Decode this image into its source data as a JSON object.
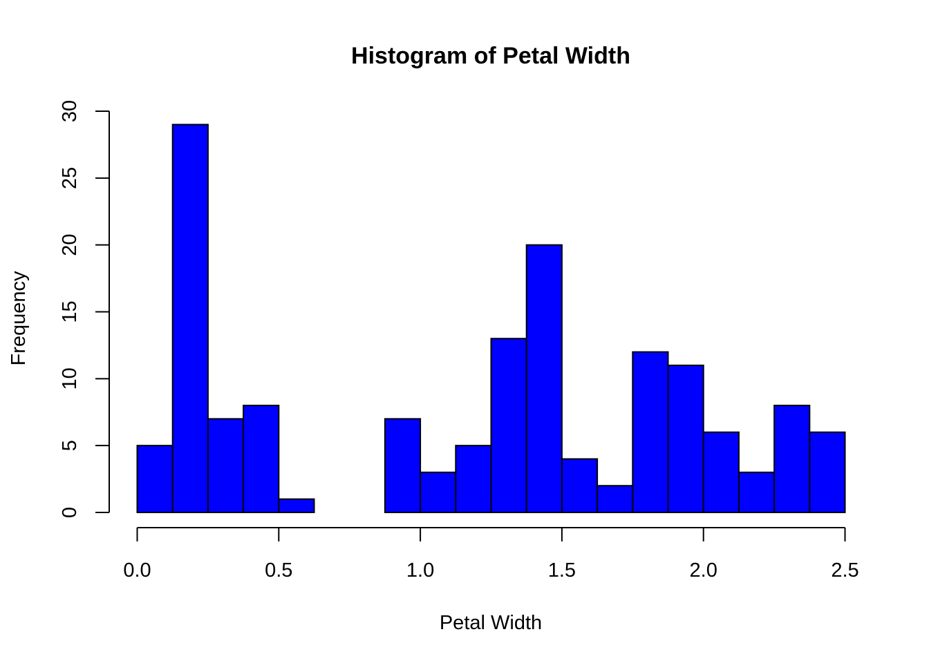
{
  "chart_data": {
    "type": "bar",
    "title": "Histogram of Petal Width",
    "xlabel": "Petal Width",
    "ylabel": "Frequency",
    "bins": [
      [
        0.0,
        0.125
      ],
      [
        0.125,
        0.25
      ],
      [
        0.25,
        0.375
      ],
      [
        0.375,
        0.5
      ],
      [
        0.5,
        0.625
      ],
      [
        0.625,
        0.75
      ],
      [
        0.75,
        0.875
      ],
      [
        0.875,
        1.0
      ],
      [
        1.0,
        1.125
      ],
      [
        1.125,
        1.25
      ],
      [
        1.25,
        1.375
      ],
      [
        1.375,
        1.5
      ],
      [
        1.5,
        1.625
      ],
      [
        1.625,
        1.75
      ],
      [
        1.75,
        1.875
      ],
      [
        1.875,
        2.0
      ],
      [
        2.0,
        2.125
      ],
      [
        2.125,
        2.25
      ],
      [
        2.25,
        2.375
      ],
      [
        2.375,
        2.5
      ]
    ],
    "values": [
      5,
      29,
      7,
      8,
      1,
      0,
      0,
      7,
      3,
      5,
      13,
      20,
      4,
      2,
      12,
      11,
      6,
      3,
      8,
      6
    ],
    "xlim": [
      0,
      2.5
    ],
    "ylim": [
      0,
      30
    ],
    "x_ticks": [
      "0.0",
      "0.5",
      "1.0",
      "1.5",
      "2.0",
      "2.5"
    ],
    "y_ticks": [
      "0",
      "5",
      "10",
      "15",
      "20",
      "25",
      "30"
    ],
    "bar_color": "#0000ff",
    "bar_border_color": "#000000",
    "grid": false
  }
}
